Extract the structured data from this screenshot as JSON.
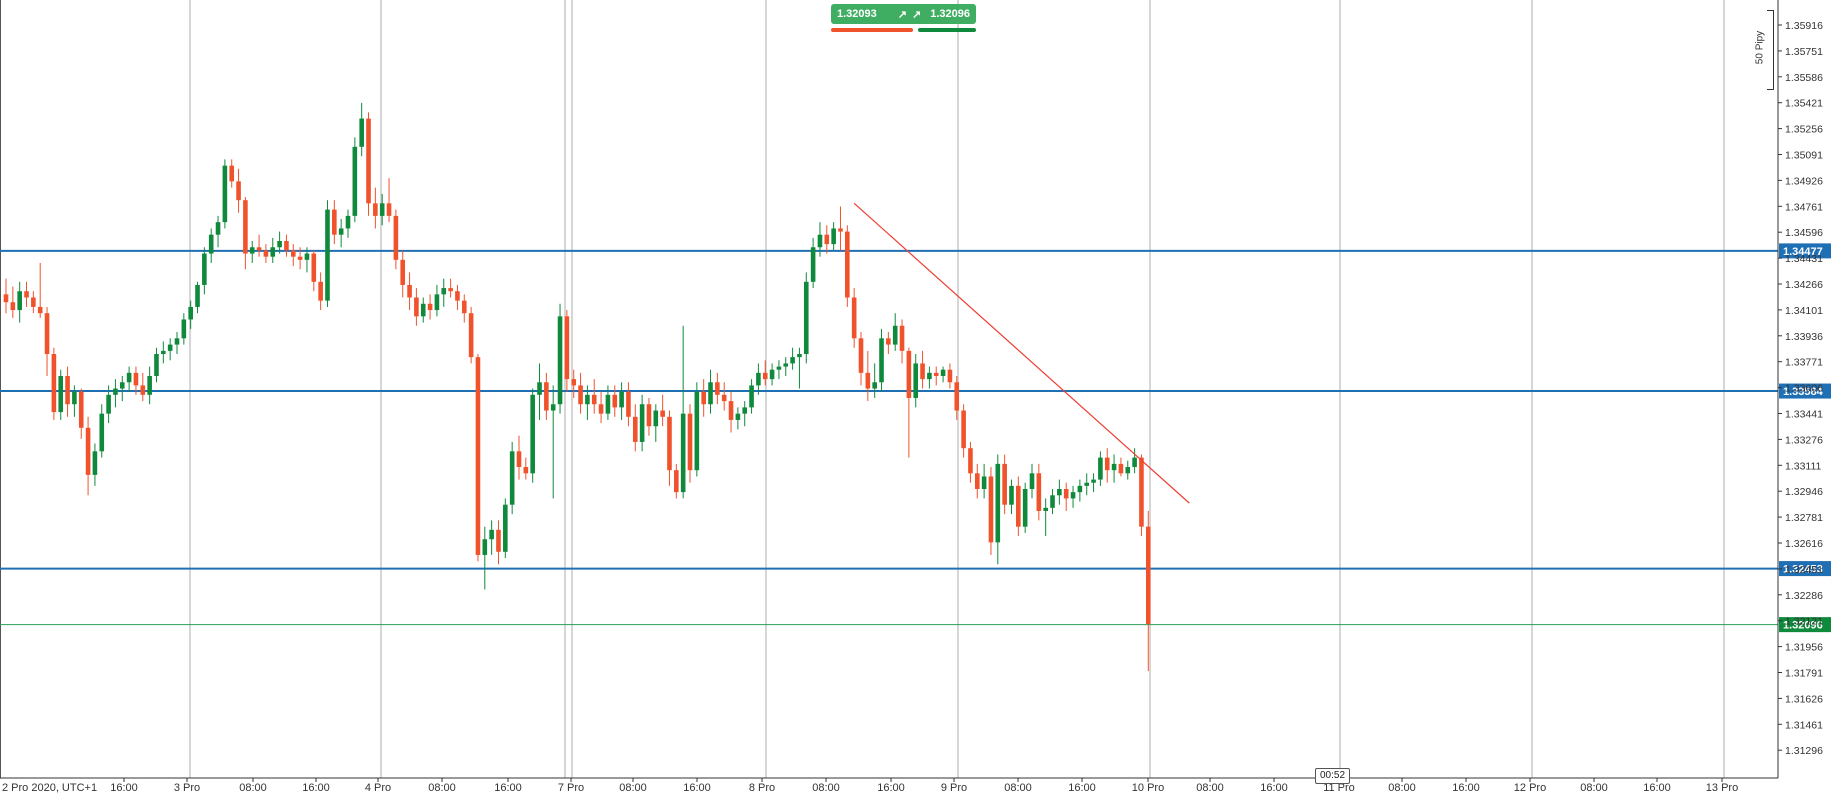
{
  "quote_panel": {
    "sell_price": "1.32093",
    "buy_price": "1.32096",
    "sell_icon": "arrow-up-right-icon",
    "buy_icon": "arrow-up-right-icon",
    "sell_color": "#f0522c",
    "buy_color": "#0f8a3c"
  },
  "scale_label": "50 Pipy",
  "timer": "00:52",
  "colors": {
    "bull": "#0f8a3c",
    "bear": "#f0522c",
    "level_line": "#1f6fb5",
    "trendline": "#f03c32",
    "current_price_line": "#2a9d5a",
    "grid": "#9a9a9a"
  },
  "chart_data": {
    "type": "candlestick",
    "title": "",
    "xlabel": "",
    "ylabel": "",
    "x_tick_labels": [
      "2 Pro 2020, UTC+1",
      "16:00",
      "3 Pro",
      "08:00",
      "16:00",
      "4 Pro",
      "08:00",
      "16:00",
      "7 Pro",
      "08:00",
      "16:00",
      "8 Pro",
      "08:00",
      "16:00",
      "9 Pro",
      "08:00",
      "16:00",
      "10 Pro",
      "08:00",
      "16:00",
      "11 Pro",
      "08:00",
      "16:00",
      "12 Pro",
      "08:00",
      "16:00",
      "13 Pro"
    ],
    "y_tick_labels": [
      "1.35916",
      "1.35751",
      "1.35586",
      "1.35421",
      "1.35256",
      "1.35091",
      "1.34926",
      "1.34761",
      "1.34596",
      "1.34431",
      "1.34266",
      "1.34101",
      "1.33936",
      "1.33771",
      "1.33606",
      "1.33441",
      "1.33276",
      "1.33111",
      "1.32946",
      "1.32781",
      "1.32616",
      "1.32451",
      "1.32286",
      "1.32121",
      "1.31956",
      "1.31791",
      "1.31626",
      "1.31461",
      "1.31296"
    ],
    "ylim": [
      1.312,
      1.3602
    ],
    "horizontal_levels": [
      {
        "price": 1.34477,
        "label": "1.34477"
      },
      {
        "price": 1.33584,
        "label": "1.33584"
      },
      {
        "price": 1.32453,
        "label": "1.32453"
      }
    ],
    "current_price": {
      "price": 1.32096,
      "label": "1.32096"
    },
    "candles": [
      [
        1.342,
        1.343,
        1.3408,
        1.3415
      ],
      [
        1.3415,
        1.3425,
        1.3405,
        1.341
      ],
      [
        1.341,
        1.3428,
        1.3402,
        1.3422
      ],
      [
        1.3422,
        1.3428,
        1.3412,
        1.3418
      ],
      [
        1.3418,
        1.3422,
        1.3408,
        1.3412
      ],
      [
        1.3412,
        1.344,
        1.3405,
        1.3408
      ],
      [
        1.3408,
        1.3412,
        1.3368,
        1.3382
      ],
      [
        1.3382,
        1.3386,
        1.334,
        1.3345
      ],
      [
        1.3345,
        1.3372,
        1.334,
        1.3368
      ],
      [
        1.3368,
        1.3374,
        1.3342,
        1.335
      ],
      [
        1.335,
        1.3362,
        1.3342,
        1.3358
      ],
      [
        1.3358,
        1.336,
        1.3328,
        1.3335
      ],
      [
        1.3335,
        1.3342,
        1.3292,
        1.3305
      ],
      [
        1.3305,
        1.3325,
        1.3298,
        1.332
      ],
      [
        1.332,
        1.335,
        1.3316,
        1.3344
      ],
      [
        1.3344,
        1.3362,
        1.3338,
        1.3356
      ],
      [
        1.3356,
        1.3366,
        1.3348,
        1.336
      ],
      [
        1.336,
        1.3368,
        1.3352,
        1.3364
      ],
      [
        1.3364,
        1.3374,
        1.3358,
        1.337
      ],
      [
        1.337,
        1.3374,
        1.3356,
        1.3362
      ],
      [
        1.3362,
        1.337,
        1.3352,
        1.3356
      ],
      [
        1.3356,
        1.3374,
        1.335,
        1.3368
      ],
      [
        1.3368,
        1.3386,
        1.3364,
        1.3382
      ],
      [
        1.3382,
        1.339,
        1.3376,
        1.3384
      ],
      [
        1.3384,
        1.3392,
        1.3378,
        1.3388
      ],
      [
        1.3388,
        1.3396,
        1.3382,
        1.3392
      ],
      [
        1.3392,
        1.3408,
        1.3388,
        1.3404
      ],
      [
        1.3404,
        1.3416,
        1.3398,
        1.3412
      ],
      [
        1.3412,
        1.3428,
        1.3408,
        1.3426
      ],
      [
        1.3426,
        1.345,
        1.342,
        1.3446
      ],
      [
        1.3446,
        1.3462,
        1.344,
        1.3458
      ],
      [
        1.3458,
        1.347,
        1.345,
        1.3466
      ],
      [
        1.3466,
        1.3506,
        1.3462,
        1.3502
      ],
      [
        1.3502,
        1.3506,
        1.3488,
        1.3492
      ],
      [
        1.3492,
        1.35,
        1.3472,
        1.348
      ],
      [
        1.348,
        1.3482,
        1.3436,
        1.3446
      ],
      [
        1.3446,
        1.3454,
        1.344,
        1.345
      ],
      [
        1.345,
        1.3458,
        1.3444,
        1.3448
      ],
      [
        1.3448,
        1.3452,
        1.344,
        1.3444
      ],
      [
        1.3444,
        1.3456,
        1.344,
        1.345
      ],
      [
        1.345,
        1.346,
        1.3446,
        1.3454
      ],
      [
        1.3454,
        1.3458,
        1.3444,
        1.3448
      ],
      [
        1.3448,
        1.3452,
        1.3438,
        1.3444
      ],
      [
        1.3444,
        1.345,
        1.3436,
        1.3442
      ],
      [
        1.3442,
        1.345,
        1.3434,
        1.3446
      ],
      [
        1.3446,
        1.3448,
        1.3422,
        1.3428
      ],
      [
        1.3428,
        1.3434,
        1.341,
        1.3416
      ],
      [
        1.3416,
        1.348,
        1.3412,
        1.3474
      ],
      [
        1.3474,
        1.348,
        1.3452,
        1.3458
      ],
      [
        1.3458,
        1.3468,
        1.345,
        1.3462
      ],
      [
        1.3462,
        1.3474,
        1.3456,
        1.347
      ],
      [
        1.347,
        1.352,
        1.3466,
        1.3514
      ],
      [
        1.3514,
        1.3542,
        1.3508,
        1.3532
      ],
      [
        1.3532,
        1.3536,
        1.347,
        1.3478
      ],
      [
        1.3478,
        1.3488,
        1.3462,
        1.347
      ],
      [
        1.347,
        1.3484,
        1.3464,
        1.3478
      ],
      [
        1.3478,
        1.3494,
        1.3466,
        1.347
      ],
      [
        1.347,
        1.3474,
        1.3436,
        1.3442
      ],
      [
        1.3442,
        1.3448,
        1.3418,
        1.3426
      ],
      [
        1.3426,
        1.3434,
        1.341,
        1.3418
      ],
      [
        1.3418,
        1.3424,
        1.34,
        1.3406
      ],
      [
        1.3406,
        1.3418,
        1.3402,
        1.3414
      ],
      [
        1.3414,
        1.342,
        1.3404,
        1.341
      ],
      [
        1.341,
        1.3426,
        1.3406,
        1.342
      ],
      [
        1.342,
        1.343,
        1.3412,
        1.3424
      ],
      [
        1.3424,
        1.343,
        1.3418,
        1.3422
      ],
      [
        1.3422,
        1.3426,
        1.341,
        1.3416
      ],
      [
        1.3416,
        1.342,
        1.3402,
        1.3408
      ],
      [
        1.3408,
        1.3412,
        1.3376,
        1.338
      ],
      [
        1.338,
        1.3382,
        1.325,
        1.3254
      ],
      [
        1.3254,
        1.3272,
        1.3232,
        1.3264
      ],
      [
        1.3264,
        1.3276,
        1.3254,
        1.327
      ],
      [
        1.327,
        1.3276,
        1.3248,
        1.3256
      ],
      [
        1.3256,
        1.329,
        1.3252,
        1.3286
      ],
      [
        1.3286,
        1.3326,
        1.328,
        1.332
      ],
      [
        1.332,
        1.333,
        1.3302,
        1.331
      ],
      [
        1.331,
        1.3316,
        1.3302,
        1.3306
      ],
      [
        1.3306,
        1.336,
        1.33,
        1.3356
      ],
      [
        1.3356,
        1.3376,
        1.334,
        1.3364
      ],
      [
        1.3364,
        1.337,
        1.334,
        1.3346
      ],
      [
        1.3346,
        1.3362,
        1.329,
        1.335
      ],
      [
        1.335,
        1.3414,
        1.3344,
        1.3406
      ],
      [
        1.3406,
        1.341,
        1.3358,
        1.3366
      ],
      [
        1.3366,
        1.3372,
        1.3354,
        1.3362
      ],
      [
        1.3362,
        1.337,
        1.3344,
        1.335
      ],
      [
        1.335,
        1.3362,
        1.334,
        1.3356
      ],
      [
        1.3356,
        1.3366,
        1.3344,
        1.335
      ],
      [
        1.335,
        1.3358,
        1.3338,
        1.3344
      ],
      [
        1.3344,
        1.3362,
        1.334,
        1.3356
      ],
      [
        1.3356,
        1.3362,
        1.3342,
        1.3348
      ],
      [
        1.3348,
        1.3364,
        1.334,
        1.3358
      ],
      [
        1.3358,
        1.3364,
        1.3336,
        1.3342
      ],
      [
        1.3342,
        1.335,
        1.332,
        1.3326
      ],
      [
        1.3326,
        1.3356,
        1.332,
        1.335
      ],
      [
        1.335,
        1.3354,
        1.333,
        1.3336
      ],
      [
        1.3336,
        1.335,
        1.3326,
        1.3346
      ],
      [
        1.3346,
        1.3356,
        1.3336,
        1.3342
      ],
      [
        1.3342,
        1.3346,
        1.3298,
        1.3308
      ],
      [
        1.3308,
        1.3312,
        1.329,
        1.3294
      ],
      [
        1.3294,
        1.34,
        1.329,
        1.3344
      ],
      [
        1.3344,
        1.335,
        1.33,
        1.3308
      ],
      [
        1.3308,
        1.3364,
        1.3304,
        1.3358
      ],
      [
        1.3358,
        1.3366,
        1.3342,
        1.335
      ],
      [
        1.335,
        1.3372,
        1.3344,
        1.3364
      ],
      [
        1.3364,
        1.337,
        1.335,
        1.3356
      ],
      [
        1.3356,
        1.3364,
        1.3346,
        1.3352
      ],
      [
        1.3352,
        1.3358,
        1.3332,
        1.334
      ],
      [
        1.334,
        1.3348,
        1.3334,
        1.3344
      ],
      [
        1.3344,
        1.3352,
        1.3336,
        1.3348
      ],
      [
        1.3348,
        1.3366,
        1.3344,
        1.3362
      ],
      [
        1.3362,
        1.3376,
        1.3356,
        1.337
      ],
      [
        1.337,
        1.3378,
        1.3362,
        1.3366
      ],
      [
        1.3366,
        1.3376,
        1.3362,
        1.3372
      ],
      [
        1.3372,
        1.3378,
        1.3366,
        1.3374
      ],
      [
        1.3374,
        1.338,
        1.3368,
        1.3376
      ],
      [
        1.3376,
        1.3386,
        1.3372,
        1.338
      ],
      [
        1.338,
        1.3386,
        1.336,
        1.3382
      ],
      [
        1.3382,
        1.3434,
        1.3376,
        1.3428
      ],
      [
        1.3428,
        1.3456,
        1.3424,
        1.345
      ],
      [
        1.345,
        1.3466,
        1.3444,
        1.3458
      ],
      [
        1.3458,
        1.3464,
        1.3446,
        1.3452
      ],
      [
        1.3452,
        1.3466,
        1.3448,
        1.3462
      ],
      [
        1.3462,
        1.3476,
        1.3448,
        1.346
      ],
      [
        1.346,
        1.3464,
        1.3412,
        1.3418
      ],
      [
        1.3418,
        1.3424,
        1.3386,
        1.3392
      ],
      [
        1.3392,
        1.3396,
        1.3362,
        1.337
      ],
      [
        1.337,
        1.3384,
        1.3352,
        1.336
      ],
      [
        1.336,
        1.3376,
        1.3354,
        1.3364
      ],
      [
        1.3364,
        1.3398,
        1.3358,
        1.3392
      ],
      [
        1.3392,
        1.3396,
        1.3382,
        1.3388
      ],
      [
        1.3388,
        1.3408,
        1.3384,
        1.34
      ],
      [
        1.34,
        1.3404,
        1.3376,
        1.3384
      ],
      [
        1.3384,
        1.3386,
        1.3316,
        1.3354
      ],
      [
        1.3354,
        1.3382,
        1.3348,
        1.3376
      ],
      [
        1.3376,
        1.3384,
        1.336,
        1.3366
      ],
      [
        1.3366,
        1.3374,
        1.336,
        1.337
      ],
      [
        1.337,
        1.3374,
        1.3362,
        1.3368
      ],
      [
        1.3368,
        1.3374,
        1.3364,
        1.3372
      ],
      [
        1.3372,
        1.3376,
        1.336,
        1.3364
      ],
      [
        1.3364,
        1.3368,
        1.334,
        1.3346
      ],
      [
        1.3346,
        1.335,
        1.3316,
        1.3322
      ],
      [
        1.3322,
        1.3326,
        1.33,
        1.3306
      ],
      [
        1.3306,
        1.3312,
        1.329,
        1.3296
      ],
      [
        1.3296,
        1.3312,
        1.329,
        1.3304
      ],
      [
        1.3304,
        1.331,
        1.3254,
        1.3262
      ],
      [
        1.3262,
        1.3318,
        1.3248,
        1.3312
      ],
      [
        1.3312,
        1.3318,
        1.328,
        1.3286
      ],
      [
        1.3286,
        1.3302,
        1.328,
        1.3298
      ],
      [
        1.3298,
        1.3304,
        1.3266,
        1.3272
      ],
      [
        1.3272,
        1.33,
        1.3268,
        1.3296
      ],
      [
        1.3296,
        1.3312,
        1.329,
        1.3306
      ],
      [
        1.3306,
        1.3312,
        1.3276,
        1.3282
      ],
      [
        1.3282,
        1.329,
        1.3266,
        1.3284
      ],
      [
        1.3284,
        1.3296,
        1.328,
        1.3292
      ],
      [
        1.3292,
        1.3302,
        1.3286,
        1.3296
      ],
      [
        1.3296,
        1.33,
        1.3282,
        1.329
      ],
      [
        1.329,
        1.3298,
        1.3284,
        1.3294
      ],
      [
        1.3294,
        1.3302,
        1.3288,
        1.3298
      ],
      [
        1.3298,
        1.3306,
        1.3292,
        1.33
      ],
      [
        1.33,
        1.3306,
        1.3294,
        1.3302
      ],
      [
        1.3302,
        1.332,
        1.3298,
        1.3316
      ],
      [
        1.3316,
        1.3322,
        1.33,
        1.3308
      ],
      [
        1.3308,
        1.3318,
        1.33,
        1.3312
      ],
      [
        1.3312,
        1.3316,
        1.3304,
        1.3306
      ],
      [
        1.3306,
        1.3314,
        1.3302,
        1.331
      ],
      [
        1.331,
        1.3322,
        1.3306,
        1.3316
      ],
      [
        1.3316,
        1.3318,
        1.3266,
        1.3272
      ],
      [
        1.3272,
        1.3282,
        1.318,
        1.321
      ]
    ],
    "trendline": {
      "from": {
        "candle": 124,
        "price": 1.3478
      },
      "to": {
        "candle": 173,
        "price": 1.3287
      }
    }
  }
}
